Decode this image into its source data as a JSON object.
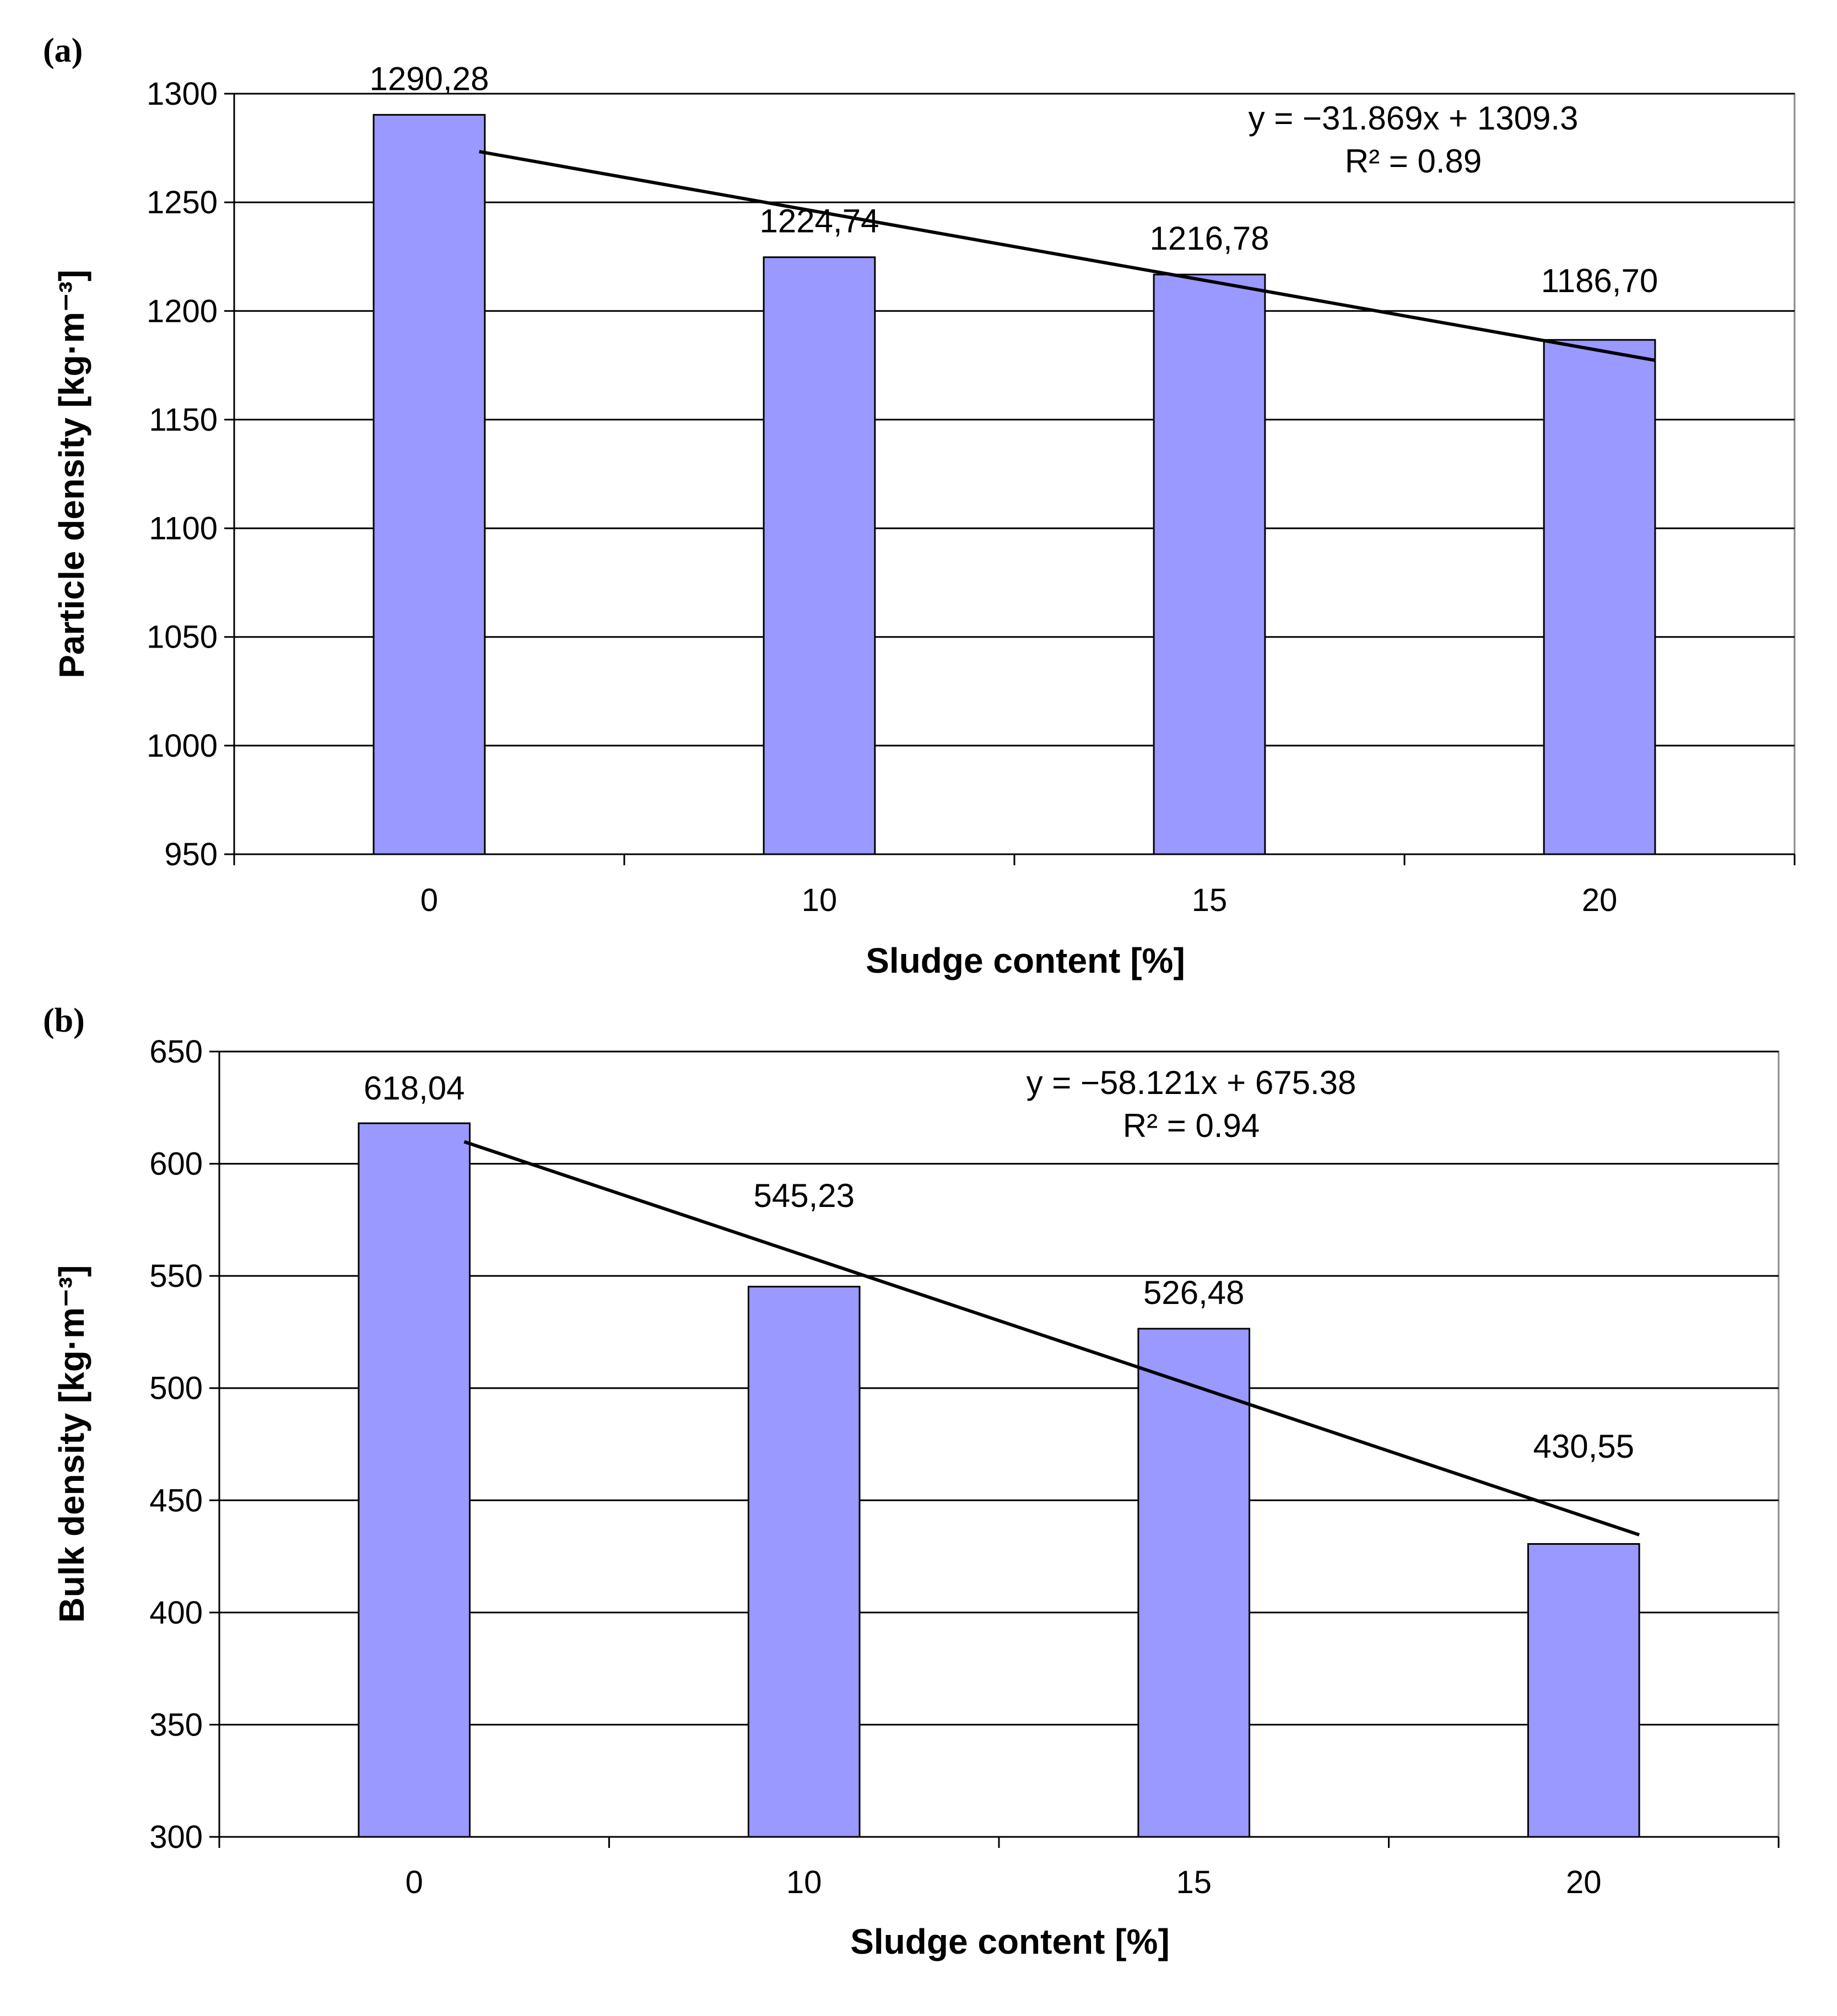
{
  "chart_data": [
    {
      "panel_label": "(a)",
      "type": "bar",
      "categories": [
        "0",
        "10",
        "15",
        "20"
      ],
      "values": [
        1290.28,
        1224.74,
        1216.78,
        1186.7
      ],
      "value_labels": [
        "1290,28",
        "1224,74",
        "1216,78",
        "1186,70"
      ],
      "xlabel": "Sludge content [%]",
      "ylabel": "Particle density [kg·m⁻³]",
      "ylim": [
        950,
        1300
      ],
      "yticks": [
        950,
        1000,
        1050,
        1100,
        1150,
        1200,
        1250,
        1300
      ],
      "grid": true,
      "bar_color": "#9999FF",
      "trendline": {
        "type": "linear",
        "slope": -31.869,
        "intercept": 1309.3,
        "equation": "y = −31.869x + 1309.3",
        "r2": "R² = 0.89"
      }
    },
    {
      "panel_label": "(b)",
      "type": "bar",
      "categories": [
        "0",
        "10",
        "15",
        "20"
      ],
      "values": [
        618.04,
        545.23,
        526.48,
        430.55
      ],
      "value_labels": [
        "618,04",
        "545,23",
        "526,48",
        "430,55"
      ],
      "xlabel": "Sludge content [%]",
      "ylabel": "Bulk density [kg·m⁻³]",
      "ylim": [
        300,
        650
      ],
      "yticks": [
        300,
        350,
        400,
        450,
        500,
        550,
        600,
        650
      ],
      "grid": true,
      "bar_color": "#9999FF",
      "trendline": {
        "type": "linear",
        "slope": -58.121,
        "intercept": 675.38,
        "equation": "y = −58.121x + 675.38",
        "r2": "R² = 0.94"
      }
    }
  ]
}
